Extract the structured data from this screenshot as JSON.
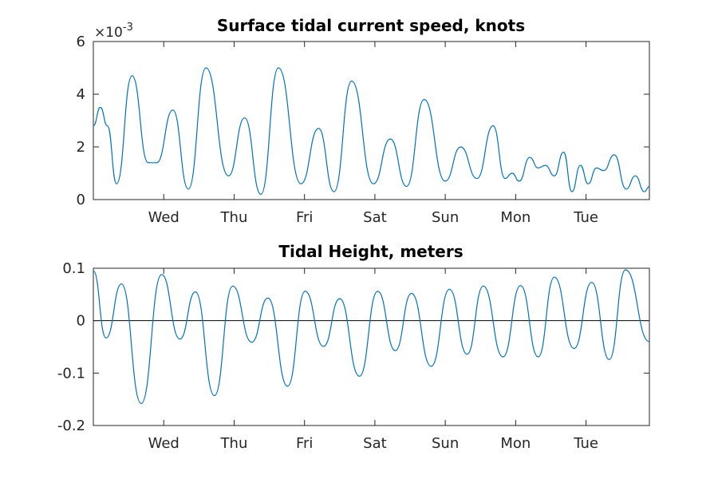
{
  "chart_data": [
    {
      "type": "line",
      "title": "Surface tidal current speed, knots",
      "ylabel": "",
      "xlabel": "",
      "y_multiplier_label": "×10",
      "y_multiplier_exp": "-3",
      "ylim": [
        0,
        0.006
      ],
      "yticks": [
        0,
        0.002,
        0.004,
        0.006
      ],
      "ytick_labels": [
        "0",
        "2",
        "4",
        "6"
      ],
      "xlim": [
        0,
        7.9
      ],
      "xticks": [
        1,
        2,
        3,
        4,
        5,
        6,
        7
      ],
      "xtick_labels": [
        "Wed",
        "Thu",
        "Fri",
        "Sat",
        "Sun",
        "Mon",
        "Tue"
      ],
      "zero_line": false,
      "grid": false,
      "series": [
        {
          "color": "#0072BD",
          "points": [
            [
              0.0,
              0.0028
            ],
            [
              0.1,
              0.0035
            ],
            [
              0.2,
              0.0028
            ],
            [
              0.33,
              0.0006
            ],
            [
              0.55,
              0.0047
            ],
            [
              0.78,
              0.0014
            ],
            [
              0.9,
              0.0014
            ],
            [
              1.13,
              0.0034
            ],
            [
              1.35,
              0.0004
            ],
            [
              1.6,
              0.005
            ],
            [
              1.92,
              0.0009
            ],
            [
              2.15,
              0.0031
            ],
            [
              2.38,
              0.0002
            ],
            [
              2.63,
              0.005
            ],
            [
              2.95,
              0.0006
            ],
            [
              3.2,
              0.0027
            ],
            [
              3.42,
              0.0003
            ],
            [
              3.67,
              0.0045
            ],
            [
              3.98,
              0.0006
            ],
            [
              4.22,
              0.0023
            ],
            [
              4.45,
              0.0005
            ],
            [
              4.7,
              0.0038
            ],
            [
              5.0,
              0.0007
            ],
            [
              5.22,
              0.002
            ],
            [
              5.45,
              0.0008
            ],
            [
              5.68,
              0.0028
            ],
            [
              5.85,
              0.0008
            ],
            [
              5.95,
              0.001
            ],
            [
              6.05,
              0.0007
            ],
            [
              6.2,
              0.0016
            ],
            [
              6.32,
              0.0012
            ],
            [
              6.42,
              0.0013
            ],
            [
              6.55,
              0.0009
            ],
            [
              6.68,
              0.0018
            ],
            [
              6.8,
              0.0003
            ],
            [
              6.92,
              0.0013
            ],
            [
              7.03,
              0.0006
            ],
            [
              7.15,
              0.0012
            ],
            [
              7.25,
              0.0011
            ],
            [
              7.4,
              0.0017
            ],
            [
              7.57,
              0.0004
            ],
            [
              7.7,
              0.0009
            ],
            [
              7.83,
              0.0003
            ],
            [
              7.9,
              0.0005
            ]
          ]
        }
      ]
    },
    {
      "type": "line",
      "title": "Tidal Height, meters",
      "ylabel": "",
      "xlabel": "",
      "ylim": [
        -0.2,
        0.1
      ],
      "yticks": [
        -0.2,
        -0.1,
        0,
        0.1
      ],
      "ytick_labels": [
        "-0.2",
        "-0.1",
        "0",
        "0.1"
      ],
      "xlim": [
        0,
        7.9
      ],
      "xticks": [
        1,
        2,
        3,
        4,
        5,
        6,
        7
      ],
      "xtick_labels": [
        "Wed",
        "Thu",
        "Fri",
        "Sat",
        "Sun",
        "Mon",
        "Tue"
      ],
      "zero_line": true,
      "grid": false,
      "series": [
        {
          "color": "#0072BD",
          "points": [
            [
              0.0,
              0.095
            ],
            [
              0.18,
              -0.033
            ],
            [
              0.4,
              0.07
            ],
            [
              0.68,
              -0.158
            ],
            [
              0.97,
              0.088
            ],
            [
              1.23,
              -0.035
            ],
            [
              1.45,
              0.055
            ],
            [
              1.72,
              -0.143
            ],
            [
              1.98,
              0.066
            ],
            [
              2.25,
              -0.041
            ],
            [
              2.48,
              0.043
            ],
            [
              2.76,
              -0.125
            ],
            [
              3.01,
              0.056
            ],
            [
              3.27,
              -0.049
            ],
            [
              3.5,
              0.042
            ],
            [
              3.78,
              -0.106
            ],
            [
              4.04,
              0.056
            ],
            [
              4.29,
              -0.057
            ],
            [
              4.52,
              0.052
            ],
            [
              4.8,
              -0.087
            ],
            [
              5.06,
              0.06
            ],
            [
              5.31,
              -0.064
            ],
            [
              5.54,
              0.066
            ],
            [
              5.82,
              -0.069
            ],
            [
              6.07,
              0.067
            ],
            [
              6.32,
              -0.069
            ],
            [
              6.55,
              0.083
            ],
            [
              6.83,
              -0.053
            ],
            [
              7.08,
              0.073
            ],
            [
              7.33,
              -0.074
            ],
            [
              7.56,
              0.097
            ],
            [
              7.9,
              -0.04
            ]
          ]
        }
      ]
    }
  ]
}
